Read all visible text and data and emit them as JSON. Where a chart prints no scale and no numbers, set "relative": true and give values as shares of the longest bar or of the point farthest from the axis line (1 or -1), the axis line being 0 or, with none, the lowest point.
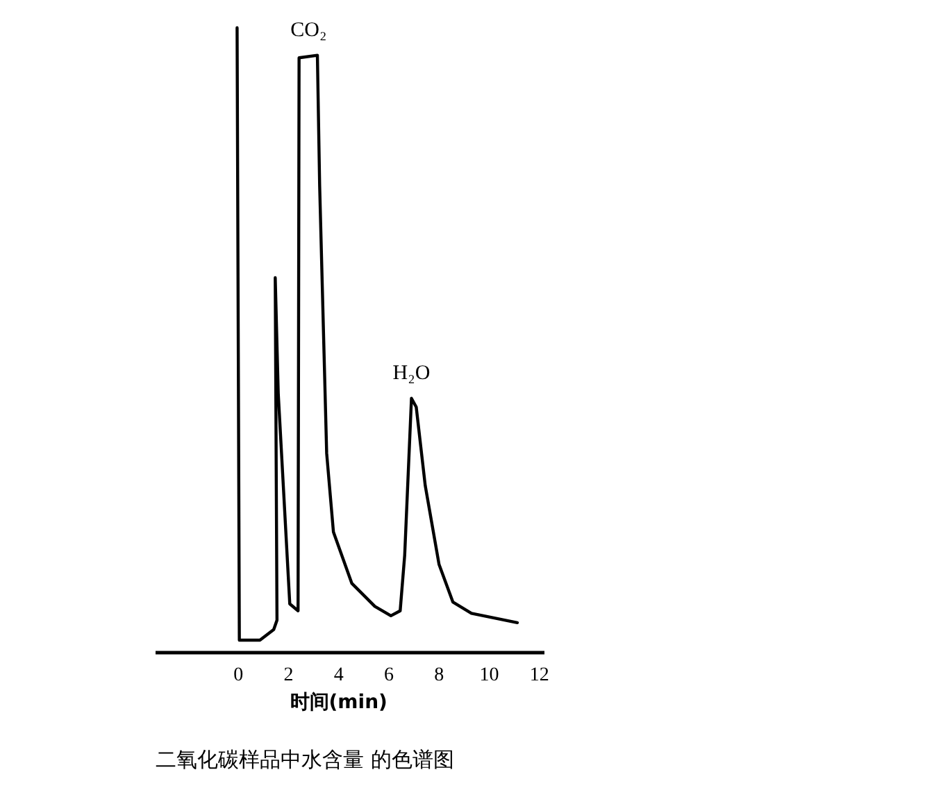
{
  "chart_data": {
    "type": "line",
    "relative": true,
    "xlabel": "时间(min)",
    "x": [
      -0.05,
      0.04,
      0.86,
      1.41,
      1.54,
      1.47,
      1.59,
      2.05,
      2.38,
      2.42,
      3.15,
      3.24,
      3.52,
      3.79,
      4.52,
      5.44,
      6.08,
      6.45,
      6.63,
      6.9,
      7.09,
      7.45,
      8.0,
      8.55,
      9.29,
      11.12
    ],
    "series": [
      {
        "color": "#000000",
        "values": [
          1.0,
          0.02,
          0.02,
          0.037,
          0.052,
          0.6,
          0.415,
          0.078,
          0.067,
          0.952,
          0.956,
          0.748,
          0.319,
          0.193,
          0.111,
          0.074,
          0.059,
          0.067,
          0.156,
          0.407,
          0.393,
          0.267,
          0.141,
          0.081,
          0.063,
          0.048
        ]
      }
    ],
    "xlim": [
      -3.3,
      12.2
    ],
    "xticks": [
      0,
      2,
      4,
      6,
      8,
      10,
      12
    ],
    "tick_labels": "x",
    "grid": false,
    "marker": "none",
    "line_style": "solid",
    "annotations": [
      {
        "text": "CO₂",
        "x": 2.8,
        "y": 0.956
      },
      {
        "text": "H₂O",
        "x": 6.9,
        "y": 0.407
      },
      "二氧化碳样品中水含量 的色谱图"
    ]
  }
}
